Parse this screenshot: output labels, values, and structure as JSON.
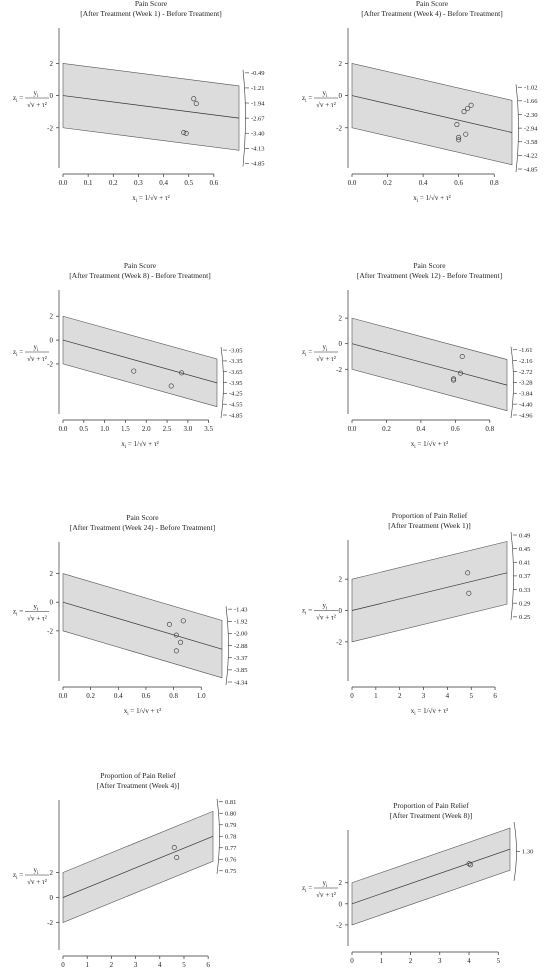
{
  "labels": {
    "ylabel_lhs": "z",
    "ylabel_lhs_sub": "i",
    "ylabel_eq": "=",
    "ylabel_num": "y",
    "ylabel_num_sub": "i",
    "ylabel_den": "√v  + τ²",
    "ylabel_den_sub": "i",
    "xlabel_lhs": "x",
    "xlabel_lhs_sub": "i",
    "xlabel_rhs": "= 1/√v  + τ²",
    "xlabel_rhs_sub": "i"
  },
  "chart_data": [
    {
      "type": "scatter",
      "title": "Pain Score",
      "subtitle": "[After Treatment (Week 1) - Before Treatment]",
      "xlim": [
        0,
        0.7
      ],
      "ylim": [
        -4.5,
        4.2
      ],
      "xticks": [
        "0.0",
        "0.1",
        "0.2",
        "0.3",
        "0.4",
        "0.5",
        "0.6"
      ],
      "yticks": [
        "2",
        "0",
        "-2"
      ],
      "points": [
        {
          "x": 0.52,
          "y": -0.2
        },
        {
          "x": 0.53,
          "y": -0.5
        },
        {
          "x": 0.48,
          "y": -2.3
        },
        {
          "x": 0.49,
          "y": -2.35
        }
      ],
      "slope": -2.0,
      "arc_labels": [
        "-0.49",
        "-1.21",
        "-1.94",
        "-2.67",
        "-3.40",
        "-4.13",
        "-4.85"
      ]
    },
    {
      "type": "scatter",
      "title": "Pain Score",
      "subtitle": "[After Treatment (Week 4) - Before Treatment]",
      "xlim": [
        0,
        0.9
      ],
      "ylim": [
        -4.5,
        4.2
      ],
      "xticks": [
        "0.0",
        "0.2",
        "0.4",
        "0.6",
        "0.8"
      ],
      "yticks": [
        "2",
        "0",
        "-2"
      ],
      "points": [
        {
          "x": 0.67,
          "y": -0.6
        },
        {
          "x": 0.65,
          "y": -0.8
        },
        {
          "x": 0.63,
          "y": -1.0
        },
        {
          "x": 0.59,
          "y": -1.8
        },
        {
          "x": 0.6,
          "y": -2.6
        },
        {
          "x": 0.6,
          "y": -2.75
        },
        {
          "x": 0.64,
          "y": -2.4
        }
      ],
      "slope": -2.55,
      "arc_labels": [
        "-1.02",
        "-1.66",
        "-2.30",
        "-2.94",
        "-3.58",
        "-4.22",
        "-4.85"
      ]
    },
    {
      "type": "scatter",
      "title": "Pain Score",
      "subtitle": "[After Treatment (Week 8) - Before Treatment]",
      "xlim": [
        0,
        3.7
      ],
      "ylim": [
        -6.2,
        4.2
      ],
      "xticks": [
        "0.0",
        "0.5",
        "1.0",
        "1.5",
        "2.0",
        "2.5",
        "3.0",
        "3.5"
      ],
      "yticks": [
        "2",
        "0",
        "-2"
      ],
      "points": [
        {
          "x": 1.7,
          "y": -2.6
        },
        {
          "x": 2.85,
          "y": -2.75
        },
        {
          "x": 2.6,
          "y": -3.85
        }
      ],
      "slope": -0.97,
      "arc_labels": [
        "-3.05",
        "-3.35",
        "-3.65",
        "-3.95",
        "-4.25",
        "-4.55",
        "-4.85"
      ]
    },
    {
      "type": "scatter",
      "title": "Pain Score",
      "subtitle": "[After Treatment (Week 12) - Before Treatment]",
      "xlim": [
        0,
        0.9
      ],
      "ylim": [
        -5.5,
        4.2
      ],
      "xticks": [
        "0.0",
        "0.2",
        "0.4",
        "0.6",
        "0.8"
      ],
      "yticks": [
        "2",
        "0",
        "-2"
      ],
      "points": [
        {
          "x": 0.64,
          "y": -1.0
        },
        {
          "x": 0.63,
          "y": -2.3
        },
        {
          "x": 0.59,
          "y": -2.85
        },
        {
          "x": 0.59,
          "y": -2.75
        }
      ],
      "slope": -3.6,
      "arc_labels": [
        "-1.61",
        "-2.16",
        "-2.72",
        "-3.28",
        "-3.84",
        "-4.40",
        "-4.96"
      ]
    },
    {
      "type": "scatter",
      "title": "Pain Score",
      "subtitle": "[After Treatment (Week 24) - Before Treatment]",
      "xlim": [
        0,
        1.15
      ],
      "ylim": [
        -5.5,
        4.2
      ],
      "xticks": [
        "0.0",
        "0.2",
        "0.4",
        "0.6",
        "0.8",
        "1.0"
      ],
      "yticks": [
        "2",
        "0",
        "-2"
      ],
      "points": [
        {
          "x": 0.87,
          "y": -1.3
        },
        {
          "x": 0.77,
          "y": -1.55
        },
        {
          "x": 0.82,
          "y": -2.3
        },
        {
          "x": 0.85,
          "y": -2.8
        },
        {
          "x": 0.82,
          "y": -3.4
        }
      ],
      "slope": -2.85,
      "arc_labels": [
        "-1.43",
        "-1.92",
        "-2.00",
        "-2.88",
        "-3.37",
        "-3.85",
        "-4.34"
      ]
    },
    {
      "type": "scatter",
      "title": "Proportion of Pain Relief",
      "subtitle": "[After Treatment (Week 1)]",
      "xlim": [
        0,
        6.5
      ],
      "ylim": [
        -4.5,
        4.5
      ],
      "xticks": [
        "0",
        "1",
        "2",
        "3",
        "4",
        "5",
        "6"
      ],
      "yticks": [
        "2",
        "0",
        "-2"
      ],
      "points": [
        {
          "x": 4.85,
          "y": 2.4
        },
        {
          "x": 4.9,
          "y": 1.1
        }
      ],
      "slope": 0.37,
      "arc_labels": [
        "0.49",
        "0.45",
        "0.41",
        "0.37",
        "0.33",
        "0.29",
        "0.25"
      ]
    },
    {
      "type": "scatter",
      "title": "Proportion of Pain Relief",
      "subtitle": "[After Treatment (Week 4)]",
      "xlim": [
        0,
        6.2
      ],
      "ylim": [
        -4.2,
        7.8
      ],
      "xticks": [
        "0",
        "1",
        "2",
        "3",
        "4",
        "5",
        "6"
      ],
      "yticks": [
        "2",
        "0",
        "-2"
      ],
      "points": [
        {
          "x": 4.6,
          "y": 4.0
        },
        {
          "x": 4.7,
          "y": 3.2
        }
      ],
      "slope": 0.79,
      "arc_labels": [
        "0.81",
        "0.80",
        "0.79",
        "0.78",
        "0.77",
        "0.76",
        "0.75"
      ]
    },
    {
      "type": "scatter",
      "title": "Proportion of Pain Relief",
      "subtitle": "[After Treatment (Week 8)]",
      "xlim": [
        0,
        5.4
      ],
      "ylim": [
        -4.0,
        7.0
      ],
      "xticks": [
        "0",
        "1",
        "2",
        "3",
        "4",
        "5"
      ],
      "yticks": [
        "2",
        "0",
        "-2"
      ],
      "points": [
        {
          "x": 4.0,
          "y": 3.8
        },
        {
          "x": 4.05,
          "y": 3.7
        }
      ],
      "slope": 0.96,
      "arc_labels": [
        "1.30"
      ]
    }
  ]
}
